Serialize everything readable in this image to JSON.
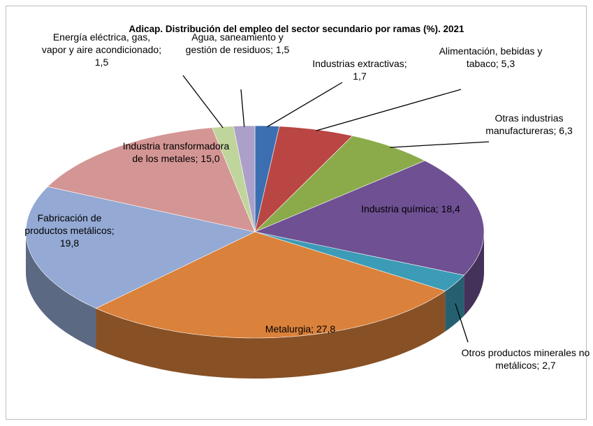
{
  "chart_data": {
    "type": "pie3d",
    "title": "Adicap. Distribución del empleo del sector secundario por ramas (%). 2021",
    "categories": [
      "Industrias extractivas;",
      "Alimentación, bebidas y tabaco;",
      "Otras industrias manufactureras;",
      "Industria química;",
      "Otros productos minerales no metálicos;",
      "Metalurgia;",
      "Fabricación de productos metálicos;",
      "Industria transformadora de los metales;",
      "Energía eléctrica, gas, vapor y aire acondicionado;",
      "Agua, saneamiento y gestión de residuos;"
    ],
    "values": [
      1.7,
      5.3,
      6.3,
      18.4,
      2.7,
      27.8,
      19.8,
      15.0,
      1.5,
      1.5
    ],
    "value_labels": [
      "1,7",
      "5,3",
      "6,3",
      "18,4",
      "2,7",
      "27,8",
      "19,8",
      "15,0",
      "1,5",
      "1,5"
    ],
    "colors": [
      "#3b6fb2",
      "#b94643",
      "#8bab4b",
      "#6e5093",
      "#3c9bb6",
      "#da813b",
      "#94a9d4",
      "#d49694",
      "#bfd59c",
      "#ac9fc9"
    ]
  }
}
